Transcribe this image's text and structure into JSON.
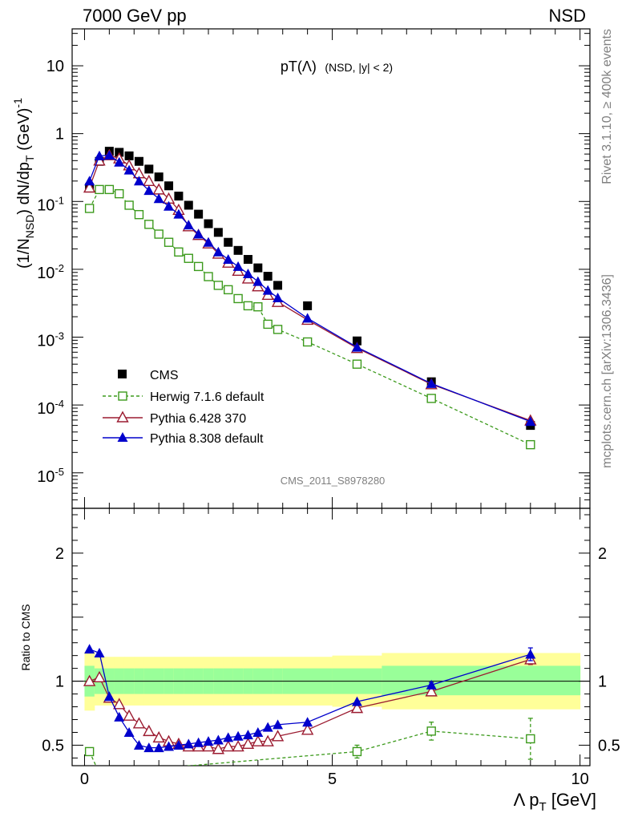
{
  "header": {
    "left": "7000 GeV pp",
    "right": "NSD"
  },
  "side_text": {
    "rivet": "Rivet 3.1.10, ≥ 400k events",
    "mcplots": "mcplots.cern.ch [arXiv:1306.3436]"
  },
  "watermark": "CMS_2011_S8978280",
  "plot_title": {
    "main": "pT(Λ)",
    "sub": "(NSD, |y| < 2)"
  },
  "ylabel_top": "(1/N_NSD) dN/dp_T (GeV)^-1",
  "ylabel_bottom": "Ratio to CMS",
  "xlabel": "Λ p_T [GeV]",
  "legend": {
    "cms": "CMS",
    "herwig": "Herwig 7.1.6 default",
    "pythia6": "Pythia 6.428 370",
    "pythia8": "Pythia 8.308 default"
  },
  "colors": {
    "cms": "#000000",
    "herwig": "#3c9a1c",
    "pythia6": "#9b1b30",
    "pythia8": "#0000cc",
    "band_inner": "#99ff99",
    "band_outer": "#ffff99"
  },
  "chart_data": [
    {
      "type": "scatter",
      "panel": "main",
      "log_y": true,
      "xlim": [
        -0.25,
        10.2
      ],
      "ylim": [
        3e-06,
        35
      ],
      "y_tick_labels": [
        "10^-5",
        "10^-4",
        "10^-3",
        "10^-2",
        "10^-1",
        "1",
        "10"
      ],
      "x_tick_labels": [
        "0",
        "5",
        "10"
      ],
      "series": [
        {
          "name": "CMS",
          "x": [
            0.1,
            0.3,
            0.5,
            0.7,
            0.9,
            1.1,
            1.3,
            1.5,
            1.7,
            1.9,
            2.1,
            2.3,
            2.5,
            2.7,
            2.9,
            3.1,
            3.3,
            3.5,
            3.7,
            3.9,
            4.5,
            5.5,
            7.0,
            9.0
          ],
          "y": [
            0.16,
            0.39,
            0.55,
            0.53,
            0.47,
            0.39,
            0.3,
            0.23,
            0.17,
            0.12,
            0.088,
            0.065,
            0.047,
            0.035,
            0.025,
            0.019,
            0.014,
            0.0105,
            0.0079,
            0.0058,
            0.0029,
            0.00088,
            0.00022,
            5e-05
          ]
        },
        {
          "name": "Herwig 7.1.6 default",
          "x": [
            0.1,
            0.3,
            0.5,
            0.7,
            0.9,
            1.1,
            1.3,
            1.5,
            1.7,
            1.9,
            2.1,
            2.3,
            2.5,
            2.7,
            2.9,
            3.1,
            3.3,
            3.5,
            3.7,
            3.9,
            4.5,
            5.5,
            7.0,
            9.0
          ],
          "y": [
            0.079,
            0.15,
            0.15,
            0.13,
            0.088,
            0.064,
            0.046,
            0.033,
            0.025,
            0.018,
            0.0145,
            0.011,
            0.0078,
            0.0058,
            0.005,
            0.0037,
            0.0029,
            0.0028,
            0.00155,
            0.0013,
            0.00085,
            0.0004,
            0.000125,
            2.6e-05
          ]
        },
        {
          "name": "Pythia 6.428 370",
          "x": [
            0.1,
            0.3,
            0.5,
            0.7,
            0.9,
            1.1,
            1.3,
            1.5,
            1.7,
            1.9,
            2.1,
            2.3,
            2.5,
            2.7,
            2.9,
            3.1,
            3.3,
            3.5,
            3.7,
            3.9,
            4.5,
            5.5,
            7.0,
            9.0
          ],
          "y": [
            0.16,
            0.4,
            0.48,
            0.43,
            0.34,
            0.26,
            0.2,
            0.15,
            0.11,
            0.075,
            0.043,
            0.032,
            0.024,
            0.017,
            0.0125,
            0.0095,
            0.0073,
            0.0056,
            0.0042,
            0.0033,
            0.0018,
            0.00069,
            0.000202,
            5.9e-05
          ]
        },
        {
          "name": "Pythia 8.308 default",
          "x": [
            0.1,
            0.3,
            0.5,
            0.7,
            0.9,
            1.1,
            1.3,
            1.5,
            1.7,
            1.9,
            2.1,
            2.3,
            2.5,
            2.7,
            2.9,
            3.1,
            3.3,
            3.5,
            3.7,
            3.9,
            4.5,
            5.5,
            7.0,
            9.0
          ],
          "y": [
            0.2,
            0.47,
            0.48,
            0.38,
            0.29,
            0.2,
            0.145,
            0.11,
            0.085,
            0.065,
            0.045,
            0.033,
            0.025,
            0.018,
            0.014,
            0.011,
            0.0086,
            0.0066,
            0.0049,
            0.0038,
            0.0019,
            0.00071,
            0.000207,
            5.7e-05
          ]
        }
      ]
    },
    {
      "type": "scatter",
      "panel": "ratio",
      "xlim": [
        -0.25,
        10.2
      ],
      "ylim": [
        0.34,
        2.35
      ],
      "y_tick_labels": [
        "0.5",
        "1",
        "2"
      ],
      "x_tick_labels": [
        "0",
        "5",
        "10"
      ],
      "reference": 1.0,
      "bands": {
        "edges": [
          0,
          0.2,
          0.4,
          0.6,
          0.8,
          1.0,
          1.2,
          1.4,
          1.6,
          1.8,
          2.0,
          2.2,
          2.4,
          2.6,
          2.8,
          3.0,
          3.2,
          3.4,
          3.6,
          3.8,
          4.0,
          5.0,
          6.0,
          8.0,
          10.0
        ],
        "inner_lo": [
          0.88,
          0.9,
          0.9,
          0.9,
          0.9,
          0.9,
          0.9,
          0.9,
          0.9,
          0.9,
          0.9,
          0.9,
          0.9,
          0.9,
          0.9,
          0.9,
          0.9,
          0.9,
          0.9,
          0.9,
          0.9,
          0.9,
          0.89,
          0.89
        ],
        "inner_hi": [
          1.12,
          1.1,
          1.1,
          1.1,
          1.1,
          1.1,
          1.1,
          1.1,
          1.1,
          1.1,
          1.1,
          1.1,
          1.1,
          1.1,
          1.1,
          1.1,
          1.1,
          1.1,
          1.1,
          1.1,
          1.1,
          1.1,
          1.12,
          1.12
        ],
        "outer_lo": [
          0.77,
          0.81,
          0.81,
          0.81,
          0.81,
          0.81,
          0.81,
          0.81,
          0.81,
          0.81,
          0.81,
          0.81,
          0.81,
          0.81,
          0.81,
          0.81,
          0.81,
          0.81,
          0.81,
          0.81,
          0.81,
          0.8,
          0.78,
          0.78
        ],
        "outer_hi": [
          1.23,
          1.19,
          1.19,
          1.19,
          1.19,
          1.19,
          1.19,
          1.19,
          1.19,
          1.19,
          1.19,
          1.19,
          1.19,
          1.19,
          1.19,
          1.19,
          1.19,
          1.19,
          1.19,
          1.19,
          1.19,
          1.2,
          1.22,
          1.22
        ]
      },
      "series": [
        {
          "name": "Herwig 7.1.6 default",
          "x": [
            0.1,
            0.3,
            5.5,
            7.0,
            9.0
          ],
          "y": [
            0.45,
            0.28,
            0.45,
            0.61,
            0.55
          ],
          "yerr": [
            0.0,
            0.0,
            0.05,
            0.07,
            0.16
          ]
        },
        {
          "name": "Pythia 6.428 370",
          "x": [
            0.1,
            0.3,
            0.5,
            0.7,
            0.9,
            1.1,
            1.3,
            1.5,
            1.7,
            1.9,
            2.1,
            2.3,
            2.5,
            2.7,
            2.9,
            3.1,
            3.3,
            3.5,
            3.7,
            3.9,
            4.5,
            5.5,
            7.0,
            9.0
          ],
          "y": [
            1.0,
            1.03,
            0.87,
            0.82,
            0.73,
            0.67,
            0.61,
            0.56,
            0.53,
            0.51,
            0.49,
            0.49,
            0.49,
            0.47,
            0.49,
            0.49,
            0.51,
            0.53,
            0.53,
            0.57,
            0.62,
            0.79,
            0.92,
            1.17
          ],
          "yerr": [
            0,
            0,
            0,
            0,
            0,
            0,
            0,
            0,
            0,
            0,
            0,
            0,
            0,
            0,
            0,
            0,
            0,
            0,
            0,
            0,
            0,
            0,
            0.02,
            0.04
          ]
        },
        {
          "name": "Pythia 8.308 default",
          "x": [
            0.1,
            0.3,
            0.5,
            0.7,
            0.9,
            1.1,
            1.3,
            1.5,
            1.7,
            1.9,
            2.1,
            2.3,
            2.5,
            2.7,
            2.9,
            3.1,
            3.3,
            3.5,
            3.7,
            3.9,
            4.5,
            5.5,
            7.0,
            9.0
          ],
          "y": [
            1.25,
            1.22,
            0.88,
            0.72,
            0.6,
            0.5,
            0.48,
            0.48,
            0.49,
            0.5,
            0.51,
            0.52,
            0.53,
            0.54,
            0.56,
            0.57,
            0.58,
            0.6,
            0.64,
            0.66,
            0.68,
            0.84,
            0.97,
            1.21
          ],
          "yerr": [
            0,
            0,
            0,
            0,
            0,
            0,
            0,
            0,
            0,
            0,
            0,
            0,
            0,
            0,
            0,
            0,
            0,
            0,
            0,
            0,
            0,
            0,
            0.02,
            0.05
          ]
        }
      ]
    }
  ]
}
